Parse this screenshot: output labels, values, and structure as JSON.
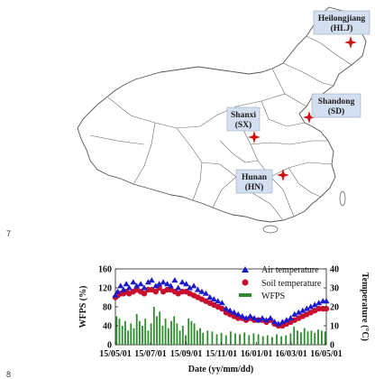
{
  "figure_numbers": [
    "7",
    "8"
  ],
  "map": {
    "sites": [
      {
        "name": "Heilongjiang",
        "abbr": "(HLJ)"
      },
      {
        "name": "Shandong",
        "abbr": "(SD)"
      },
      {
        "name": "Shanxi",
        "abbr": "(SX)"
      },
      {
        "name": "Hunan",
        "abbr": "(HN)"
      }
    ],
    "colors": {
      "outline": "#555555",
      "label_box": "#d3dff0",
      "star": "#cc1111"
    },
    "icons": {
      "site_marker": "star-icon"
    }
  },
  "chart_data": {
    "type": "bar+scatter",
    "xlabel": "Date (yy/mm/dd)",
    "ylabel_left": "WFPS (%)",
    "ylabel_right": "Temperature (°C)",
    "ylim_left": [
      0,
      160
    ],
    "ylim_right": [
      0,
      40
    ],
    "yticks_left": [
      "0",
      "40",
      "80",
      "120",
      "160"
    ],
    "yticks_right": [
      "0",
      "10",
      "20",
      "30",
      "40"
    ],
    "xticks": [
      "15/05/01",
      "15/07/01",
      "15/09/01",
      "15/11/01",
      "16/01/01",
      "16/03/01",
      "16/05/01"
    ],
    "xlim": [
      "2015-05-01",
      "2016-05-01"
    ],
    "legend_position": "top-right",
    "series": [
      {
        "name": "Air temperature",
        "marker": "triangle",
        "color": "#1a1acc",
        "axis": "right",
        "x": [
          "2015-05-01",
          "2015-05-05",
          "2015-05-10",
          "2015-05-15",
          "2015-05-20",
          "2015-05-25",
          "2015-06-01",
          "2015-06-07",
          "2015-06-14",
          "2015-06-20",
          "2015-06-27",
          "2015-07-03",
          "2015-07-10",
          "2015-07-16",
          "2015-07-23",
          "2015-07-30",
          "2015-08-05",
          "2015-08-12",
          "2015-08-18",
          "2015-08-25",
          "2015-09-01",
          "2015-09-07",
          "2015-09-14",
          "2015-09-21",
          "2015-09-28",
          "2015-10-05",
          "2015-10-12",
          "2015-10-19",
          "2015-10-26",
          "2015-11-02",
          "2015-11-09",
          "2015-11-16",
          "2015-11-23",
          "2015-11-30",
          "2015-12-07",
          "2015-12-14",
          "2015-12-21",
          "2015-12-28",
          "2016-01-04",
          "2016-01-11",
          "2016-01-18",
          "2016-01-25",
          "2016-02-01",
          "2016-02-08",
          "2016-02-15",
          "2016-02-22",
          "2016-02-29",
          "2016-03-07",
          "2016-03-14",
          "2016-03-21",
          "2016-03-28",
          "2016-04-04",
          "2016-04-11",
          "2016-04-18",
          "2016-04-25",
          "2016-05-01"
        ],
        "values": [
          26,
          28,
          31,
          29,
          32,
          30,
          33,
          31,
          32,
          30,
          33,
          34,
          31,
          32,
          33,
          32,
          31,
          34,
          30,
          33,
          32,
          30,
          31,
          29,
          28,
          27,
          25,
          24,
          23,
          22,
          19,
          18,
          17,
          16,
          15,
          14,
          15,
          14,
          13,
          14,
          13,
          14,
          12,
          11,
          12,
          13,
          14,
          16,
          17,
          18,
          19,
          20,
          21,
          22,
          23,
          23
        ]
      },
      {
        "name": "Soil temperature",
        "marker": "circle",
        "color": "#c8102e",
        "axis": "right",
        "x": [
          "2015-05-01",
          "2015-05-05",
          "2015-05-10",
          "2015-05-15",
          "2015-05-20",
          "2015-05-25",
          "2015-06-01",
          "2015-06-07",
          "2015-06-14",
          "2015-06-20",
          "2015-06-27",
          "2015-07-03",
          "2015-07-10",
          "2015-07-16",
          "2015-07-23",
          "2015-07-30",
          "2015-08-05",
          "2015-08-12",
          "2015-08-18",
          "2015-08-25",
          "2015-09-01",
          "2015-09-07",
          "2015-09-14",
          "2015-09-21",
          "2015-09-28",
          "2015-10-05",
          "2015-10-12",
          "2015-10-19",
          "2015-10-26",
          "2015-11-02",
          "2015-11-09",
          "2015-11-16",
          "2015-11-23",
          "2015-11-30",
          "2015-12-07",
          "2015-12-14",
          "2015-12-21",
          "2015-12-28",
          "2016-01-04",
          "2016-01-11",
          "2016-01-18",
          "2016-01-25",
          "2016-02-01",
          "2016-02-08",
          "2016-02-15",
          "2016-02-22",
          "2016-02-29",
          "2016-03-07",
          "2016-03-14",
          "2016-03-21",
          "2016-03-28",
          "2016-04-04",
          "2016-04-11",
          "2016-04-18",
          "2016-04-25",
          "2016-05-01"
        ],
        "values": [
          25,
          26,
          27,
          27,
          28,
          27,
          28,
          29,
          28,
          27,
          29,
          29,
          28,
          30,
          28,
          29,
          29,
          28,
          27,
          28,
          28,
          27,
          26,
          25,
          24,
          23,
          22,
          21,
          20,
          19,
          17,
          16,
          15,
          14,
          14,
          13,
          14,
          13,
          13,
          13,
          12,
          13,
          11,
          10,
          10,
          11,
          12,
          13,
          14,
          15,
          16,
          17,
          18,
          19,
          19,
          19
        ]
      },
      {
        "name": "WFPS",
        "marker": "bar",
        "color": "#2e8b2e",
        "axis": "left",
        "x": [
          "2015-05-03",
          "2015-05-08",
          "2015-05-13",
          "2015-05-18",
          "2015-05-23",
          "2015-05-28",
          "2015-06-02",
          "2015-06-07",
          "2015-06-12",
          "2015-06-17",
          "2015-06-22",
          "2015-06-27",
          "2015-07-02",
          "2015-07-07",
          "2015-07-12",
          "2015-07-17",
          "2015-07-22",
          "2015-07-27",
          "2015-08-01",
          "2015-08-06",
          "2015-08-11",
          "2015-08-16",
          "2015-08-21",
          "2015-08-26",
          "2015-08-31",
          "2015-09-05",
          "2015-09-10",
          "2015-09-15",
          "2015-09-20",
          "2015-09-25",
          "2015-09-30",
          "2015-10-08",
          "2015-10-16",
          "2015-10-24",
          "2015-11-01",
          "2015-11-09",
          "2015-11-17",
          "2015-11-25",
          "2015-12-03",
          "2015-12-11",
          "2015-12-19",
          "2015-12-27",
          "2016-01-04",
          "2016-01-12",
          "2016-01-20",
          "2016-01-28",
          "2016-02-05",
          "2016-02-13",
          "2016-02-21",
          "2016-02-29",
          "2016-03-06",
          "2016-03-12",
          "2016-03-18",
          "2016-03-24",
          "2016-03-30",
          "2016-04-05",
          "2016-04-11",
          "2016-04-17",
          "2016-04-23",
          "2016-04-29"
        ],
        "values": [
          60,
          55,
          40,
          50,
          30,
          45,
          35,
          65,
          50,
          40,
          55,
          30,
          45,
          80,
          60,
          70,
          40,
          55,
          35,
          50,
          60,
          45,
          30,
          40,
          20,
          55,
          50,
          45,
          30,
          35,
          25,
          30,
          28,
          22,
          25,
          20,
          28,
          24,
          22,
          26,
          20,
          24,
          22,
          18,
          20,
          16,
          22,
          18,
          20,
          24,
          38,
          30,
          26,
          35,
          28,
          30,
          25,
          32,
          30,
          28
        ]
      }
    ]
  }
}
